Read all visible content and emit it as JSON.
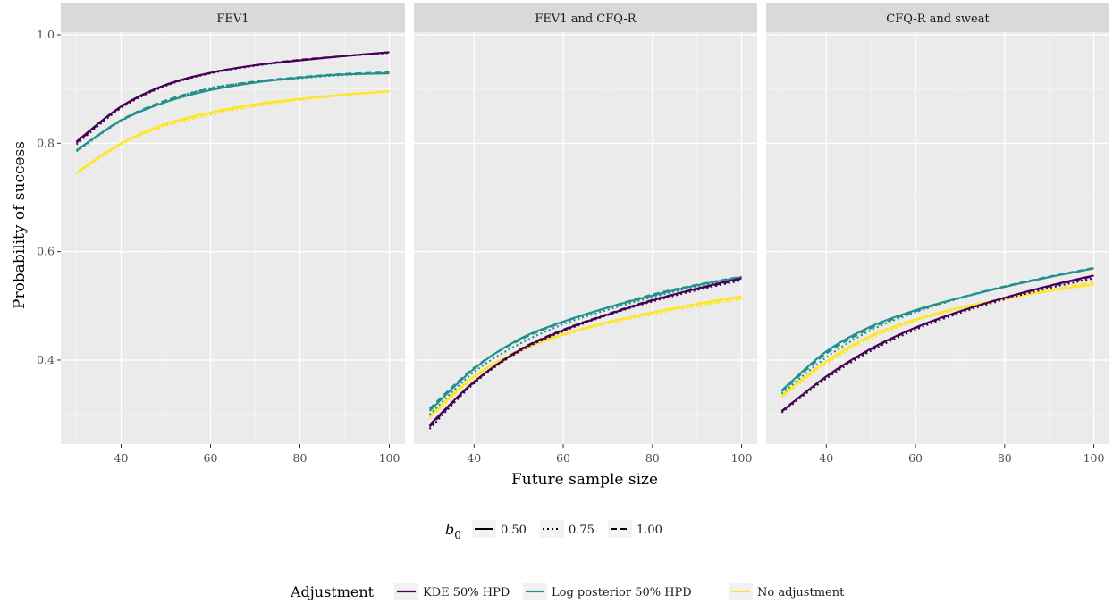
{
  "chart_data": {
    "type": "line",
    "xlabel": "Future sample size",
    "ylabel": "Probability of success",
    "xlim": [
      26.5,
      103.5
    ],
    "ylim": [
      0.245,
      1.005
    ],
    "x_ticks": [
      40,
      60,
      80,
      100
    ],
    "x_tick_labels": [
      "40",
      "60",
      "80",
      "100"
    ],
    "y_ticks": [
      0.4,
      0.6,
      0.8,
      1.0
    ],
    "y_tick_labels": [
      "0.4",
      "0.6",
      "0.8",
      "1.0"
    ],
    "grid": true,
    "legend_position": "bottom",
    "legend_linetype": {
      "title": "b",
      "title_sub": "0",
      "items": [
        {
          "label": "0.50",
          "dash": "solid"
        },
        {
          "label": "0.75",
          "dash": "dotted"
        },
        {
          "label": "1.00",
          "dash": "dashed"
        }
      ]
    },
    "legend_color": {
      "title": "Adjustment",
      "items": [
        {
          "label": "KDE 50% HPD",
          "color": "#440154"
        },
        {
          "label": "Log posterior 50% HPD",
          "color": "#21908C"
        },
        {
          "label": "No adjustment",
          "color": "#FDE725"
        }
      ]
    },
    "facets": [
      {
        "label": "FEV1",
        "x": [
          30,
          40,
          50,
          60,
          70,
          80,
          90,
          100
        ],
        "series": [
          {
            "adjustment": "KDE 50% HPD",
            "b0": "0.50",
            "y": [
              0.803,
              0.868,
              0.908,
              0.93,
              0.944,
              0.953,
              0.961,
              0.968
            ]
          },
          {
            "adjustment": "KDE 50% HPD",
            "b0": "0.75",
            "y": [
              0.798,
              0.865,
              0.906,
              0.929,
              0.943,
              0.953,
              0.961,
              0.967
            ]
          },
          {
            "adjustment": "KDE 50% HPD",
            "b0": "1.00",
            "y": [
              0.801,
              0.867,
              0.907,
              0.93,
              0.944,
              0.954,
              0.961,
              0.968
            ]
          },
          {
            "adjustment": "Log posterior 50% HPD",
            "b0": "0.50",
            "y": [
              0.787,
              0.842,
              0.876,
              0.898,
              0.912,
              0.921,
              0.927,
              0.929
            ]
          },
          {
            "adjustment": "Log posterior 50% HPD",
            "b0": "0.75",
            "y": [
              0.785,
              0.841,
              0.878,
              0.902,
              0.913,
              0.92,
              0.926,
              0.93
            ]
          },
          {
            "adjustment": "Log posterior 50% HPD",
            "b0": "1.00",
            "y": [
              0.786,
              0.843,
              0.879,
              0.901,
              0.914,
              0.922,
              0.928,
              0.931
            ]
          },
          {
            "adjustment": "No adjustment",
            "b0": "0.50",
            "y": [
              0.746,
              0.8,
              0.836,
              0.857,
              0.872,
              0.882,
              0.89,
              0.896
            ]
          },
          {
            "adjustment": "No adjustment",
            "b0": "0.75",
            "y": [
              0.743,
              0.797,
              0.832,
              0.852,
              0.868,
              0.88,
              0.889,
              0.895
            ]
          },
          {
            "adjustment": "No adjustment",
            "b0": "1.00",
            "y": [
              0.745,
              0.799,
              0.834,
              0.855,
              0.87,
              0.881,
              0.889,
              0.896
            ]
          }
        ]
      },
      {
        "label": "FEV1 and CFQ-R",
        "x": [
          30,
          40,
          50,
          60,
          70,
          80,
          90,
          100
        ],
        "series": [
          {
            "adjustment": "KDE 50% HPD",
            "b0": "0.50",
            "y": [
              0.28,
              0.36,
              0.417,
              0.455,
              0.484,
              0.51,
              0.532,
              0.551
            ]
          },
          {
            "adjustment": "KDE 50% HPD",
            "b0": "0.75",
            "y": [
              0.273,
              0.357,
              0.415,
              0.453,
              0.483,
              0.508,
              0.529,
              0.547
            ]
          },
          {
            "adjustment": "KDE 50% HPD",
            "b0": "1.00",
            "y": [
              0.277,
              0.359,
              0.418,
              0.456,
              0.485,
              0.511,
              0.531,
              0.549
            ]
          },
          {
            "adjustment": "Log posterior 50% HPD",
            "b0": "0.50",
            "y": [
              0.306,
              0.384,
              0.438,
              0.471,
              0.497,
              0.519,
              0.538,
              0.553
            ]
          },
          {
            "adjustment": "Log posterior 50% HPD",
            "b0": "0.75",
            "y": [
              0.299,
              0.378,
              0.429,
              0.466,
              0.493,
              0.516,
              0.536,
              0.551
            ]
          },
          {
            "adjustment": "Log posterior 50% HPD",
            "b0": "1.00",
            "y": [
              0.31,
              0.386,
              0.436,
              0.47,
              0.497,
              0.521,
              0.539,
              0.554
            ]
          },
          {
            "adjustment": "No adjustment",
            "b0": "0.50",
            "y": [
              0.297,
              0.37,
              0.417,
              0.447,
              0.47,
              0.488,
              0.504,
              0.518
            ]
          },
          {
            "adjustment": "No adjustment",
            "b0": "0.75",
            "y": [
              0.292,
              0.366,
              0.414,
              0.445,
              0.467,
              0.484,
              0.499,
              0.512
            ]
          },
          {
            "adjustment": "No adjustment",
            "b0": "1.00",
            "y": [
              0.295,
              0.369,
              0.417,
              0.448,
              0.47,
              0.487,
              0.502,
              0.515
            ]
          }
        ]
      },
      {
        "label": "CFQ-R and sweat",
        "x": [
          30,
          40,
          50,
          60,
          70,
          80,
          90,
          100
        ],
        "series": [
          {
            "adjustment": "KDE 50% HPD",
            "b0": "0.50",
            "y": [
              0.305,
              0.37,
              0.421,
              0.46,
              0.49,
              0.515,
              0.537,
              0.556
            ]
          },
          {
            "adjustment": "KDE 50% HPD",
            "b0": "0.75",
            "y": [
              0.303,
              0.366,
              0.417,
              0.456,
              0.487,
              0.512,
              0.533,
              0.551
            ]
          },
          {
            "adjustment": "KDE 50% HPD",
            "b0": "1.00",
            "y": [
              0.306,
              0.369,
              0.42,
              0.459,
              0.49,
              0.515,
              0.536,
              0.555
            ]
          },
          {
            "adjustment": "Log posterior 50% HPD",
            "b0": "0.50",
            "y": [
              0.344,
              0.416,
              0.462,
              0.492,
              0.515,
              0.535,
              0.553,
              0.569
            ]
          },
          {
            "adjustment": "Log posterior 50% HPD",
            "b0": "0.75",
            "y": [
              0.338,
              0.405,
              0.455,
              0.488,
              0.514,
              0.535,
              0.553,
              0.569
            ]
          },
          {
            "adjustment": "Log posterior 50% HPD",
            "b0": "1.00",
            "y": [
              0.342,
              0.412,
              0.459,
              0.49,
              0.515,
              0.536,
              0.554,
              0.57
            ]
          },
          {
            "adjustment": "No adjustment",
            "b0": "0.50",
            "y": [
              0.335,
              0.398,
              0.445,
              0.475,
              0.497,
              0.513,
              0.528,
              0.54
            ]
          },
          {
            "adjustment": "No adjustment",
            "b0": "0.75",
            "y": [
              0.331,
              0.393,
              0.44,
              0.472,
              0.495,
              0.512,
              0.527,
              0.538
            ]
          },
          {
            "adjustment": "No adjustment",
            "b0": "1.00",
            "y": [
              0.333,
              0.396,
              0.443,
              0.474,
              0.496,
              0.513,
              0.529,
              0.544
            ]
          }
        ]
      }
    ]
  }
}
